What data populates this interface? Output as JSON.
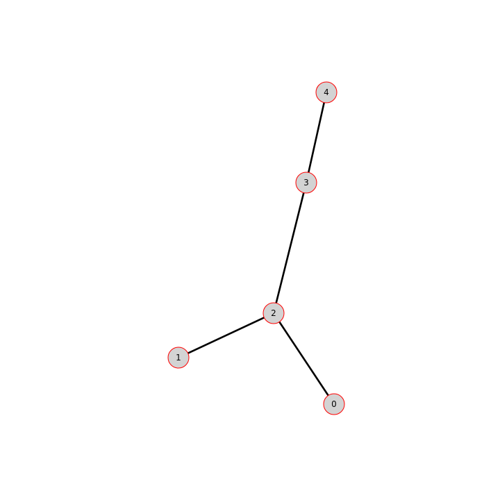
{
  "graph": {
    "node_fill": "#d3d3d3",
    "node_stroke": "#ff0000",
    "edge_color": "#000000",
    "nodes": [
      {
        "id": "0",
        "label": "0"
      },
      {
        "id": "1",
        "label": "1"
      },
      {
        "id": "2",
        "label": "2"
      },
      {
        "id": "3",
        "label": "3"
      },
      {
        "id": "4",
        "label": "4"
      }
    ],
    "edges": [
      {
        "source": "2",
        "target": "0"
      },
      {
        "source": "2",
        "target": "1"
      },
      {
        "source": "2",
        "target": "3"
      },
      {
        "source": "3",
        "target": "4"
      }
    ]
  }
}
